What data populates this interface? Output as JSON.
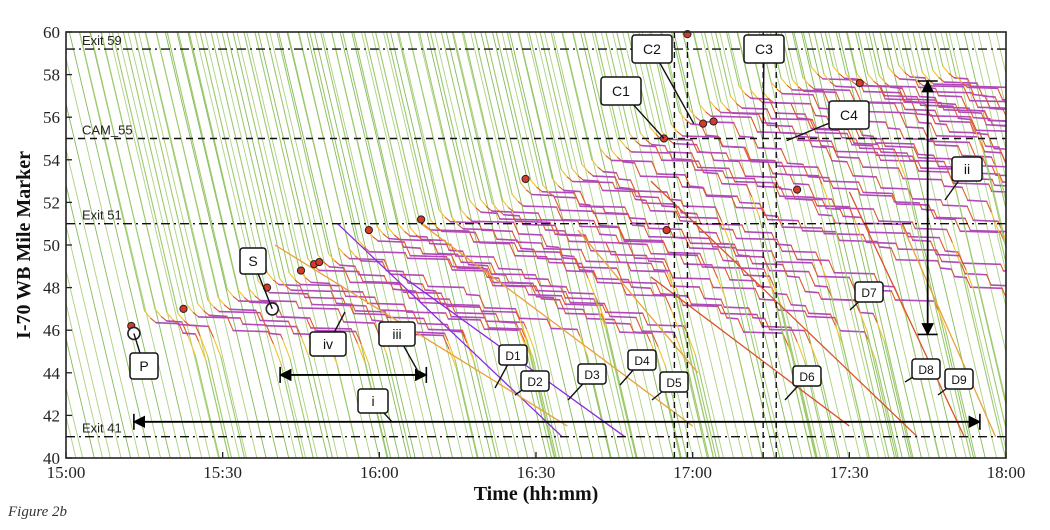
{
  "chart_data": {
    "type": "line",
    "xlabel": "Time (hh:mm)",
    "ylabel": "I-70 WB Mile Marker",
    "xlim": [
      0,
      180
    ],
    "ylim": [
      40,
      60
    ],
    "x_ticks": [
      {
        "v": 0,
        "label": "15:00"
      },
      {
        "v": 30,
        "label": "15:30"
      },
      {
        "v": 60,
        "label": "16:00"
      },
      {
        "v": 90,
        "label": "16:30"
      },
      {
        "v": 120,
        "label": "17:00"
      },
      {
        "v": 150,
        "label": "17:30"
      },
      {
        "v": 180,
        "label": "18:00"
      }
    ],
    "y_ticks": [
      40,
      42,
      44,
      46,
      48,
      50,
      52,
      54,
      56,
      58,
      60
    ],
    "reference_lines": [
      {
        "label": "Exit 59",
        "y": 59.2,
        "style": "dashdot"
      },
      {
        "label": "CAM_55",
        "y": 55.0,
        "style": "dashed"
      },
      {
        "label": "Exit 51",
        "y": 51.0,
        "style": "dashdot"
      },
      {
        "label": "Exit 41",
        "y": 41.0,
        "style": "dashdot"
      }
    ],
    "vertical_lines": [
      {
        "x": 116.5,
        "style": "dashed"
      },
      {
        "x": 119.0,
        "style": "dashed"
      },
      {
        "x": 133.5,
        "style": "dashed"
      },
      {
        "x": 136.0,
        "style": "dashed"
      }
    ],
    "congestion_front": [
      [
        12,
        46.2
      ],
      [
        25,
        47.2
      ],
      [
        40,
        48.4
      ],
      [
        55,
        50.0
      ],
      [
        75,
        51.2
      ],
      [
        95,
        52.9
      ],
      [
        115,
        55.0
      ],
      [
        130,
        56.4
      ],
      [
        145,
        57.6
      ]
    ],
    "stop_points": [
      [
        12.5,
        46.2
      ],
      [
        22.5,
        47.0
      ],
      [
        38.5,
        48.0
      ],
      [
        45,
        48.8
      ],
      [
        47.5,
        49.1
      ],
      [
        48.5,
        49.2
      ],
      [
        58,
        50.7
      ],
      [
        68,
        51.2
      ],
      [
        88,
        53.1
      ],
      [
        114.5,
        55.0
      ],
      [
        115,
        50.7
      ],
      [
        122,
        55.7
      ],
      [
        124,
        55.8
      ],
      [
        140,
        52.6
      ],
      [
        152,
        57.6
      ],
      [
        119,
        59.9
      ]
    ],
    "markers": [
      {
        "label": "P",
        "x": 13.0,
        "y": 45.85
      },
      {
        "label": "S",
        "x": 39.5,
        "y": 47.0
      }
    ],
    "callouts": [
      "C1",
      "C2",
      "C3",
      "C4",
      "P",
      "S"
    ],
    "intervals": [
      {
        "label": "i",
        "x_from": 13,
        "x_to": 175,
        "y": 41.7
      },
      {
        "label": "iii",
        "x_from": 41,
        "x_to": 69,
        "y": 43.9
      },
      {
        "label": "ii",
        "x": 165,
        "y_from": 45.8,
        "y_to": 57.7
      }
    ],
    "interval_labels": [
      "i",
      "ii",
      "iii",
      "iv"
    ],
    "deceleration_traces": [
      {
        "label": "D1",
        "color": "#8a2be2"
      },
      {
        "label": "D2",
        "color": "#e8a23a"
      },
      {
        "label": "D3",
        "color": "#8a2be2"
      },
      {
        "label": "D4",
        "color": "#e8a23a"
      },
      {
        "label": "D5",
        "color": "#e8a23a"
      },
      {
        "label": "D6",
        "color": "#d9542b"
      },
      {
        "label": "D7",
        "color": "#d9542b"
      },
      {
        "label": "D8",
        "color": "#d9542b"
      },
      {
        "label": "D9",
        "color": "#e8a23a"
      }
    ],
    "colors": {
      "free_flow": "#9cc96b",
      "free_flow_dark": "#6fae3c",
      "slow": "#f2c230",
      "braking": "#e0582b",
      "stopped": "#b04ab8",
      "stop_dot": "#d63a2a"
    },
    "grid": false
  },
  "caption": "Figure 2b"
}
